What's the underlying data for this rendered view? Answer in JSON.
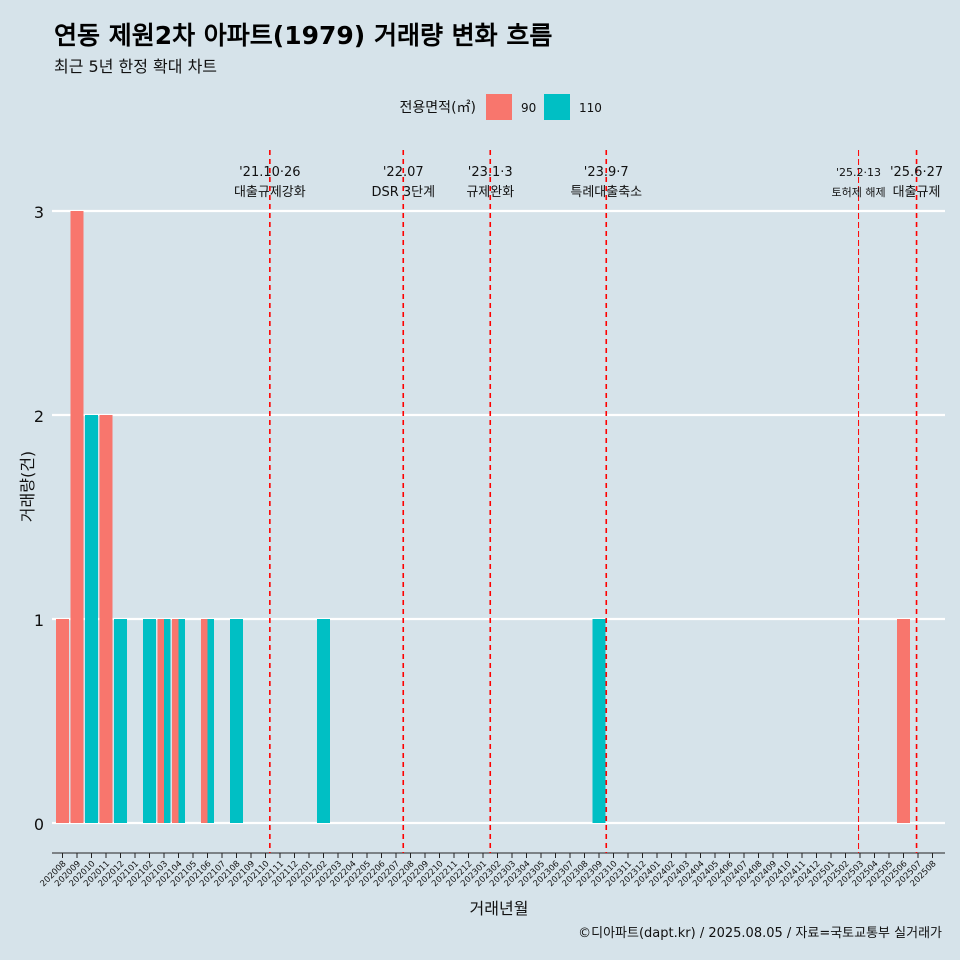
{
  "title": "연동 제원2차 아파트(1979) 거래량 변화 흐름",
  "subtitle": "최근 5년 한정 확대 차트",
  "caption": "©디아파트(dapt.kr) / 2025.08.05 / 자료=국토교통부 실거래가",
  "colors": {
    "background": "#d6e3ea",
    "series_90": "#f8766d",
    "series_110": "#00bfc4",
    "event_line": "#ff0000"
  },
  "chart_data": {
    "type": "bar",
    "xlabel": "거래년월",
    "ylabel": "거래량(건)",
    "ylim": [
      0,
      3
    ],
    "yticks": [
      0,
      1,
      2,
      3
    ],
    "legend": {
      "title": "전용면적(㎡)",
      "position": "top"
    },
    "categories": [
      "202008",
      "202009",
      "202010",
      "202011",
      "202012",
      "202101",
      "202102",
      "202103",
      "202104",
      "202105",
      "202106",
      "202107",
      "202108",
      "202109",
      "202110",
      "202111",
      "202112",
      "202201",
      "202202",
      "202203",
      "202204",
      "202205",
      "202206",
      "202207",
      "202208",
      "202209",
      "202210",
      "202211",
      "202212",
      "202301",
      "202302",
      "202303",
      "202304",
      "202305",
      "202306",
      "202307",
      "202308",
      "202309",
      "202310",
      "202311",
      "202312",
      "202401",
      "202402",
      "202403",
      "202404",
      "202405",
      "202406",
      "202407",
      "202408",
      "202409",
      "202410",
      "202411",
      "202412",
      "202501",
      "202502",
      "202503",
      "202504",
      "202505",
      "202506",
      "202507",
      "202508"
    ],
    "series": [
      {
        "name": "90",
        "color": "#f8766d",
        "values": [
          1,
          3,
          0,
          2,
          0,
          0,
          0,
          1,
          1,
          0,
          1,
          0,
          0,
          0,
          0,
          0,
          0,
          0,
          0,
          0,
          0,
          0,
          0,
          0,
          0,
          0,
          0,
          0,
          0,
          0,
          0,
          0,
          0,
          0,
          0,
          0,
          0,
          0,
          0,
          0,
          0,
          0,
          0,
          0,
          0,
          0,
          0,
          0,
          0,
          0,
          0,
          0,
          0,
          0,
          0,
          0,
          0,
          0,
          1,
          0,
          0
        ]
      },
      {
        "name": "110",
        "color": "#00bfc4",
        "values": [
          0,
          0,
          2,
          0,
          1,
          0,
          1,
          1,
          1,
          0,
          1,
          0,
          1,
          0,
          0,
          0,
          0,
          0,
          1,
          0,
          0,
          0,
          0,
          0,
          0,
          0,
          0,
          0,
          0,
          0,
          0,
          0,
          0,
          0,
          0,
          0,
          0,
          1,
          0,
          0,
          0,
          0,
          0,
          0,
          0,
          0,
          0,
          0,
          0,
          0,
          0,
          0,
          0,
          0,
          0,
          0,
          0,
          0,
          0,
          0,
          0
        ]
      }
    ],
    "bars": [
      {
        "month": "202008",
        "series": "90",
        "value": 1
      },
      {
        "month": "202009",
        "series": "90",
        "value": 3
      },
      {
        "month": "202010",
        "series": "110",
        "value": 2
      },
      {
        "month": "202011",
        "series": "90",
        "value": 2
      },
      {
        "month": "202012",
        "series": "110",
        "value": 1
      },
      {
        "month": "202102",
        "series": "110",
        "value": 1
      },
      {
        "month": "202103",
        "series": "90",
        "value": 1
      },
      {
        "month": "202103",
        "series": "110",
        "value": 1
      },
      {
        "month": "202104",
        "series": "90",
        "value": 1
      },
      {
        "month": "202104",
        "series": "110",
        "value": 1
      },
      {
        "month": "202106",
        "series": "90",
        "value": 1
      },
      {
        "month": "202106",
        "series": "110",
        "value": 1
      },
      {
        "month": "202108",
        "series": "110",
        "value": 1
      },
      {
        "month": "202202",
        "series": "110",
        "value": 1
      },
      {
        "month": "202309",
        "series": "110",
        "value": 1
      },
      {
        "month": "202506",
        "series": "90",
        "value": 1
      }
    ],
    "events": [
      {
        "date": "'21.10·26",
        "label": "대출규제강화",
        "at": 14.3,
        "style": "dashed"
      },
      {
        "date": "'22.07",
        "label": "DSR 3단계",
        "at": 23.5,
        "style": "dashed"
      },
      {
        "date": "'23.1·3",
        "label": "규제완화",
        "at": 29.5,
        "style": "dashed"
      },
      {
        "date": "'23.9·7",
        "label": "특례대출축소",
        "at": 37.5,
        "style": "dashed"
      },
      {
        "date": "'25.2·13",
        "label": "토허제 해제",
        "at": 54.9,
        "style": "thin",
        "small": true
      },
      {
        "date": "'25.6·27",
        "label": "대출규제",
        "at": 58.9,
        "style": "dashed"
      }
    ]
  }
}
